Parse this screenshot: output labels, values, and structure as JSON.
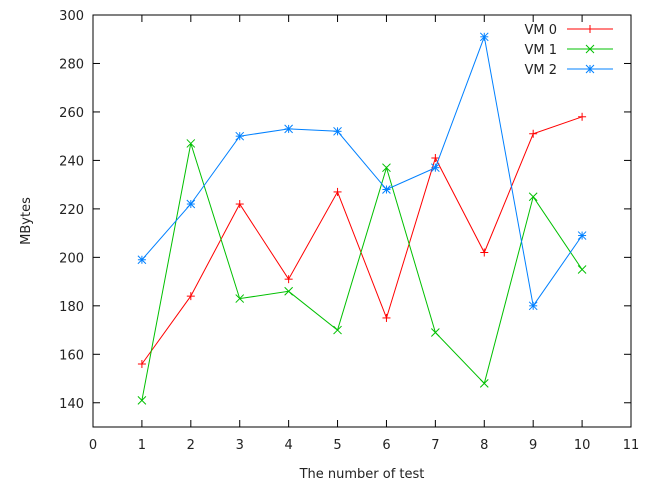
{
  "chart_data": {
    "type": "line",
    "title": "",
    "xlabel": "The number of test",
    "ylabel": "MBytes",
    "xlim": [
      0,
      11
    ],
    "ylim": [
      130,
      300
    ],
    "xticks": [
      0,
      1,
      2,
      3,
      4,
      5,
      6,
      7,
      8,
      9,
      10,
      11
    ],
    "yticks": [
      140,
      160,
      180,
      200,
      220,
      240,
      260,
      280,
      300
    ],
    "grid": false,
    "legend": "top-right",
    "x": [
      1,
      2,
      3,
      4,
      5,
      6,
      7,
      8,
      9,
      10
    ],
    "series": [
      {
        "name": "VM 0",
        "color": "#ff0000",
        "marker": "plus",
        "values": [
          156,
          184,
          222,
          191,
          227,
          175,
          241,
          202,
          251,
          258
        ]
      },
      {
        "name": "VM 1",
        "color": "#00c000",
        "marker": "cross",
        "values": [
          141,
          247,
          183,
          186,
          170,
          237,
          169,
          148,
          225,
          195
        ]
      },
      {
        "name": "VM 2",
        "color": "#0080ff",
        "marker": "star",
        "values": [
          199,
          222,
          250,
          253,
          252,
          228,
          237,
          291,
          180,
          209
        ]
      }
    ]
  }
}
